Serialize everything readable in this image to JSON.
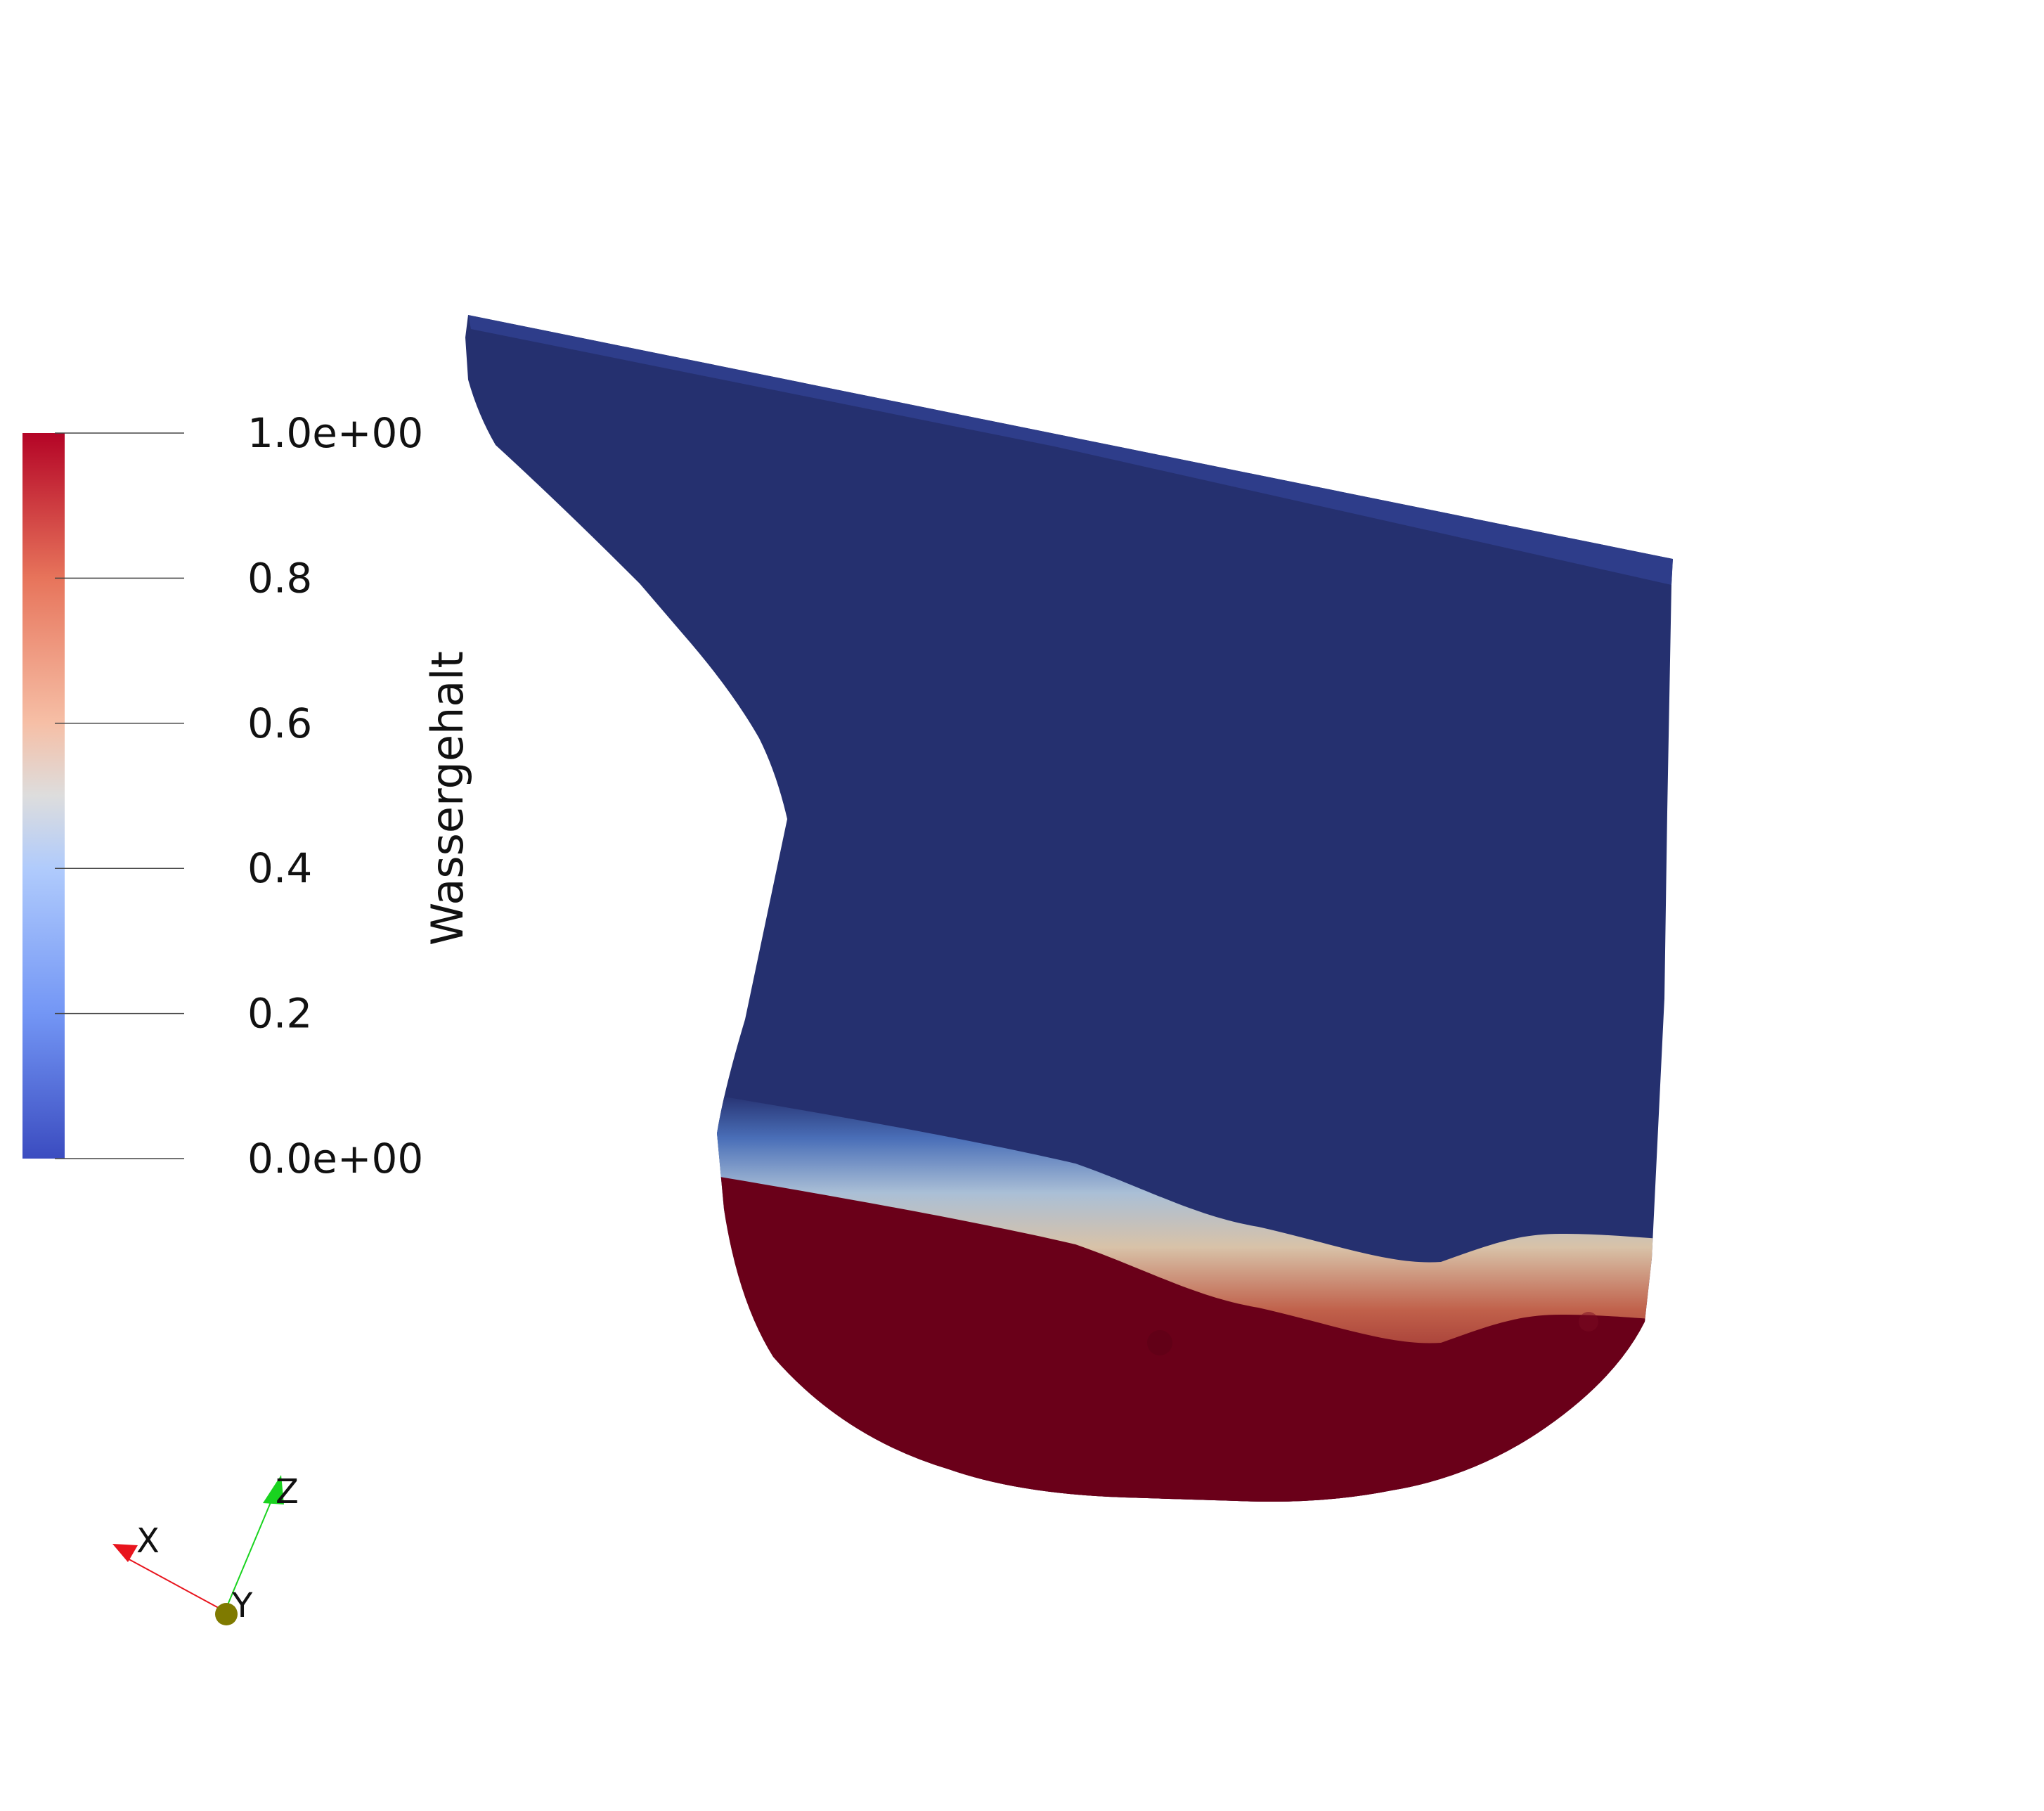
{
  "render_view": {
    "field_name": "Wassergehalt",
    "colors": {
      "background": "#ffffff",
      "dry": "#25306f",
      "wet": "#6a0019",
      "dry_top_edge": "#2e3d8a"
    }
  },
  "color_legend": {
    "title": "Wassergehalt",
    "range": [
      0,
      1
    ],
    "ticks": [
      {
        "value": 1.0,
        "label": "1.0e+00"
      },
      {
        "value": 0.8,
        "label": "0.8"
      },
      {
        "value": 0.6,
        "label": "0.6"
      },
      {
        "value": 0.4,
        "label": "0.4"
      },
      {
        "value": 0.2,
        "label": "0.2"
      },
      {
        "value": 0.0,
        "label": "0.0e+00"
      }
    ],
    "colormap": "Cool to Warm",
    "colormap_stops": [
      {
        "value": 0.0,
        "color": "#3b4cc0"
      },
      {
        "value": 0.2,
        "color": "#7396f5"
      },
      {
        "value": 0.4,
        "color": "#b0cbfc"
      },
      {
        "value": 0.5,
        "color": "#dddddd"
      },
      {
        "value": 0.6,
        "color": "#f6bfa6"
      },
      {
        "value": 0.8,
        "color": "#e7745b"
      },
      {
        "value": 1.0,
        "color": "#b40426"
      }
    ]
  },
  "orientation_axes": {
    "x_label": "X",
    "y_label": "Y",
    "z_label": "Z",
    "x_color": "#e8141d",
    "y_color": "#7f7a00",
    "z_color": "#19d31f"
  }
}
